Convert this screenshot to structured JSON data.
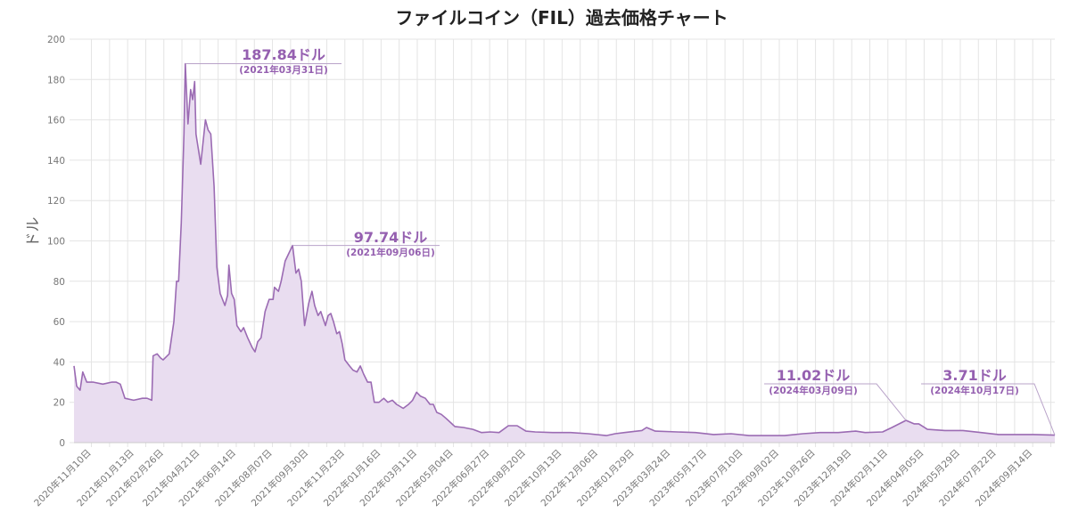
{
  "chart_data": {
    "type": "area",
    "title": "ファイルコイン（FIL）過去価格チャート",
    "xlabel": "",
    "ylabel": "ドル",
    "ylim": [
      0,
      200
    ],
    "yticks": [
      0,
      20,
      40,
      60,
      80,
      100,
      120,
      140,
      160,
      180,
      200
    ],
    "grid": true,
    "x_start_date": "2020-10-15",
    "x_unit": "days since start",
    "xlim": [
      0,
      1463
    ],
    "xtick_labels": [
      "2020年11月10日",
      "2021年01月13日",
      "2021年02月26日",
      "2021年04月21日",
      "2021年06月14日",
      "2021年08月07日",
      "2021年09月30日",
      "2021年11月23日",
      "2022年01月16日",
      "2022年03月11日",
      "2022年05月04日",
      "2022年06月27日",
      "2022年08月20日",
      "2022年10月13日",
      "2022年12月06日",
      "2023年01月29日",
      "2023年03月24日",
      "2023年05月17日",
      "2023年07月10日",
      "2023年09月02日",
      "2023年10月26日",
      "2023年12月19日",
      "2024年02月11日",
      "2024年04月05日",
      "2024年05月29日",
      "2024年07月22日",
      "2024年09月14日"
    ],
    "xtick_days": [
      26,
      90,
      134,
      188,
      242,
      296,
      350,
      404,
      458,
      512,
      566,
      620,
      674,
      728,
      782,
      836,
      890,
      944,
      998,
      1052,
      1106,
      1160,
      1214,
      1268,
      1322,
      1376,
      1430
    ],
    "series": [
      {
        "name": "FIL",
        "x": [
          0,
          4,
          9,
          13,
          19,
          29,
          43,
          56,
          63,
          69,
          76,
          89,
          102,
          109,
          116,
          118,
          124,
          129,
          133,
          142,
          149,
          153,
          156,
          160,
          164,
          166,
          170,
          174,
          177,
          180,
          182,
          189,
          196,
          200,
          204,
          209,
          213,
          218,
          225,
          229,
          231,
          235,
          239,
          243,
          249,
          253,
          259,
          266,
          270,
          274,
          279,
          285,
          291,
          297,
          299,
          305,
          309,
          315,
          326,
          331,
          335,
          339,
          344,
          350,
          355,
          359,
          364,
          368,
          375,
          379,
          383,
          387,
          392,
          396,
          400,
          404,
          411,
          416,
          422,
          427,
          432,
          438,
          443,
          448,
          455,
          462,
          468,
          475,
          481,
          491,
          499,
          505,
          511,
          517,
          524,
          531,
          536,
          541,
          548,
          555,
          568,
          581,
          595,
          608,
          621,
          634,
          648,
          661,
          674,
          688,
          714,
          741,
          767,
          794,
          807,
          821,
          847,
          854,
          867,
          900,
          927,
          954,
          980,
          1007,
          1033,
          1060,
          1087,
          1113,
          1140,
          1166,
          1180,
          1206,
          1220,
          1241,
          1253,
          1260,
          1273,
          1299,
          1326,
          1353,
          1379,
          1406,
          1432,
          1463
        ],
        "values": [
          38,
          28,
          26,
          35,
          30,
          30,
          29,
          30,
          30,
          29,
          22,
          21,
          22,
          22,
          21,
          43,
          44,
          42,
          41,
          44,
          60,
          80,
          80,
          109,
          153,
          187.84,
          158,
          175,
          170,
          179,
          153,
          138,
          160,
          155,
          153,
          127,
          87,
          74,
          68,
          73,
          88,
          74,
          71,
          58,
          55,
          57,
          52,
          47,
          45,
          50,
          52,
          65,
          71,
          71,
          77,
          75,
          80,
          90,
          97.74,
          84,
          86,
          80,
          58,
          69,
          75,
          68,
          63,
          65,
          58,
          63,
          64,
          60,
          54,
          55,
          49,
          41,
          38,
          36,
          35,
          38,
          34,
          30,
          30,
          20,
          20,
          22,
          20,
          21,
          19,
          17,
          19,
          21,
          25,
          23,
          22,
          19,
          19,
          15,
          14,
          12,
          8,
          7.5,
          6.6,
          5,
          5.3,
          5,
          8.4,
          8.4,
          5.7,
          5.3,
          5,
          5,
          4.4,
          3.5,
          4.4,
          5,
          6,
          7.5,
          5.7,
          5.3,
          5,
          4,
          4.4,
          3.5,
          3.5,
          3.5,
          4.4,
          5,
          5,
          5.7,
          5,
          5.3,
          7.5,
          11.02,
          9.3,
          9.3,
          6.6,
          6,
          6,
          5,
          4,
          4,
          4,
          3.71
        ]
      }
    ],
    "annotations": [
      {
        "label": "187.84ドル",
        "date": "(2021年03月31日)",
        "day": 166,
        "value": 187.84
      },
      {
        "label": "97.74ドル",
        "date": "(2021年09月06日)",
        "day": 326,
        "value": 97.74
      },
      {
        "label": "11.02ドル",
        "date": "(2024年03月09日)",
        "day": 1241,
        "value": 11.02
      },
      {
        "label": "3.71ドル",
        "date": "(2024年10月17日)",
        "day": 1463,
        "value": 3.71
      }
    ],
    "colors": {
      "line": "#9b6bb3",
      "fill": "#e9ddf0",
      "annotation": "#9560b0",
      "leader": "#b9a3c9",
      "grid": "#e4e4e4"
    }
  }
}
